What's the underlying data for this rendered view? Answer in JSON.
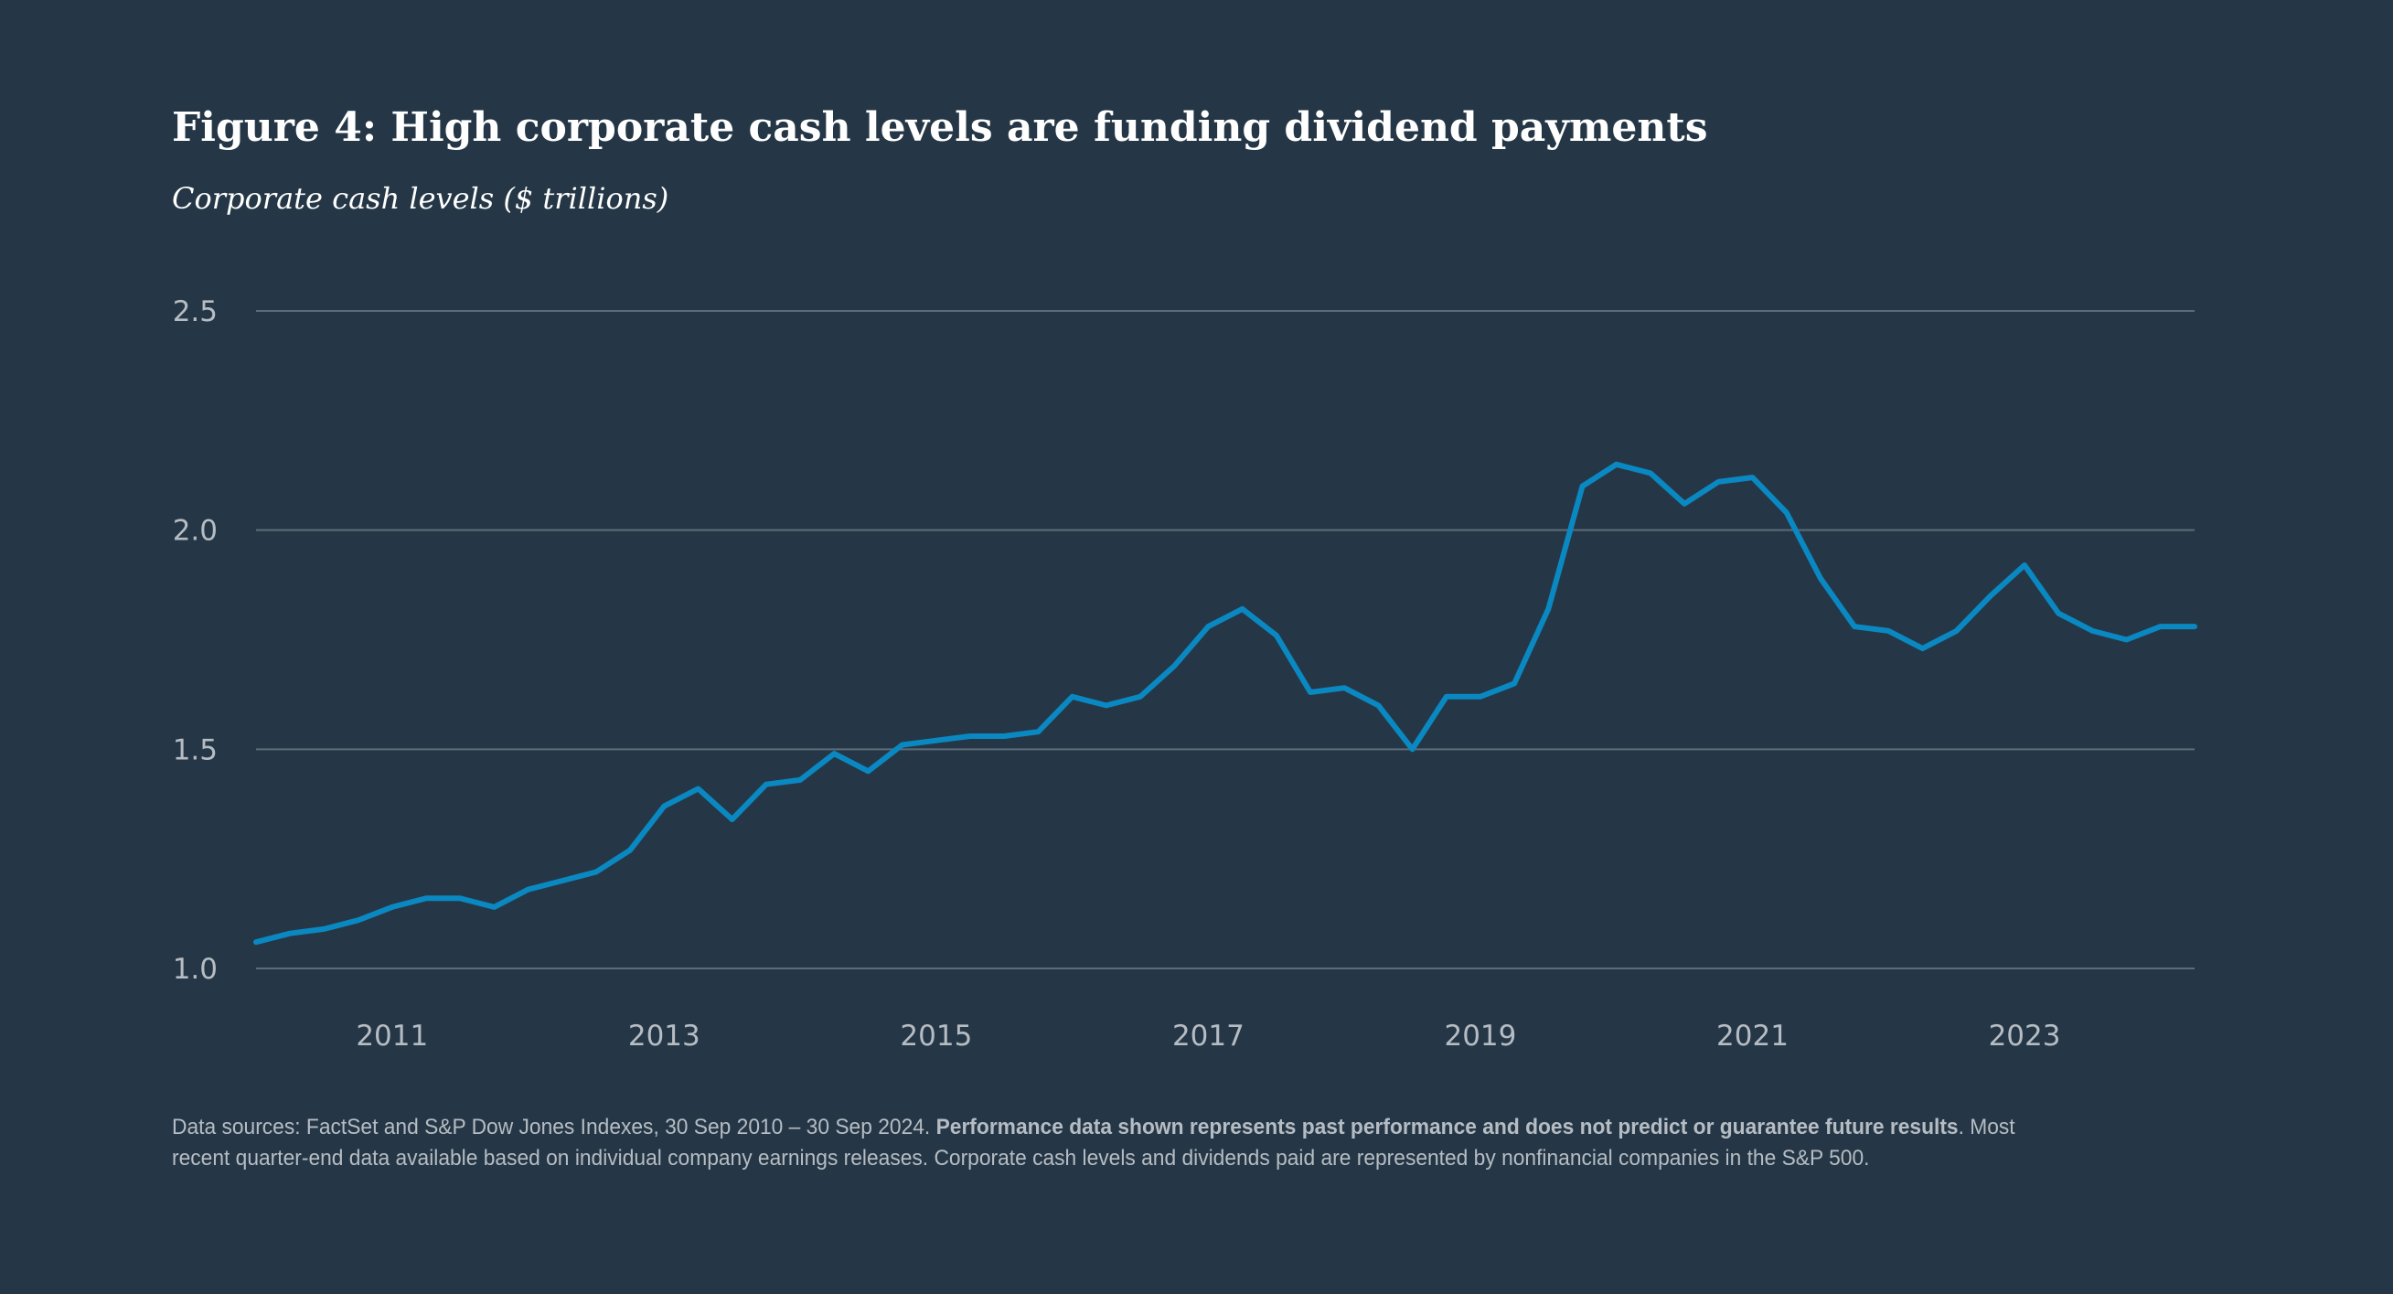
{
  "header": {
    "title": "Figure 4: High corporate cash levels are funding dividend payments",
    "subtitle": "Corporate cash levels ($ trillions)"
  },
  "footnote": {
    "part1": "Data sources: FactSet and S&P Dow Jones Indexes, 30 Sep 2010 – 30 Sep 2024. ",
    "bold": "Performance data shown represents past performance and does not predict or guarantee future results",
    "part2": ". Most recent quarter-end data available based on individual company earnings releases. Corporate cash levels and dividends paid are represented by nonfinancial companies in the S&P 500."
  },
  "colors": {
    "background": "#253746",
    "line": "#0a88c2",
    "grid": "#5d6c79",
    "tick_text": "#b6bcc3"
  },
  "chart_data": {
    "type": "line",
    "title": "Figure 4: High corporate cash levels are funding dividend payments",
    "subtitle": "Corporate cash levels ($ trillions)",
    "xlabel": "",
    "ylabel": "",
    "ylim": [
      1.0,
      2.5
    ],
    "yticks": [
      "1.0",
      "1.5",
      "2.0",
      "2.5"
    ],
    "xlim": [
      2010.0,
      2024.25
    ],
    "xticks": [
      {
        "value": 2011,
        "label": "2011"
      },
      {
        "value": 2013,
        "label": "2013"
      },
      {
        "value": 2015,
        "label": "2015"
      },
      {
        "value": 2017,
        "label": "2017"
      },
      {
        "value": 2019,
        "label": "2019"
      },
      {
        "value": 2021,
        "label": "2021"
      },
      {
        "value": 2023,
        "label": "2023"
      }
    ],
    "grid": true,
    "legend": "none",
    "series": [
      {
        "x": [
          2010.0,
          2010.25,
          2010.5,
          2010.75,
          2011.0,
          2011.25,
          2011.5,
          2011.75,
          2012.0,
          2012.25,
          2012.5,
          2012.75,
          2013.0,
          2013.25,
          2013.5,
          2013.75,
          2014.0,
          2014.25,
          2014.5,
          2014.75,
          2015.0,
          2015.25,
          2015.5,
          2015.75,
          2016.0,
          2016.25,
          2016.5,
          2016.75,
          2017.0,
          2017.25,
          2017.5,
          2017.75,
          2018.0,
          2018.25,
          2018.5,
          2018.75,
          2019.0,
          2019.25,
          2019.5,
          2019.75,
          2020.0,
          2020.25,
          2020.5,
          2020.75,
          2021.0,
          2021.25,
          2021.5,
          2021.75,
          2022.0,
          2022.25,
          2022.5,
          2022.75,
          2023.0,
          2023.25,
          2023.5,
          2023.75,
          2024.0,
          2024.25
        ],
        "values": [
          1.06,
          1.08,
          1.09,
          1.11,
          1.14,
          1.16,
          1.16,
          1.14,
          1.18,
          1.2,
          1.22,
          1.27,
          1.37,
          1.41,
          1.34,
          1.42,
          1.43,
          1.49,
          1.45,
          1.51,
          1.52,
          1.53,
          1.53,
          1.54,
          1.62,
          1.6,
          1.62,
          1.69,
          1.78,
          1.82,
          1.76,
          1.63,
          1.64,
          1.6,
          1.5,
          1.62,
          1.62,
          1.65,
          1.82,
          2.1,
          2.15,
          2.13,
          2.06,
          2.11,
          2.12,
          2.04,
          1.89,
          1.78,
          1.77,
          1.73,
          1.77,
          1.85,
          1.92,
          1.81,
          1.77,
          1.75,
          1.78,
          1.78
        ]
      }
    ]
  }
}
